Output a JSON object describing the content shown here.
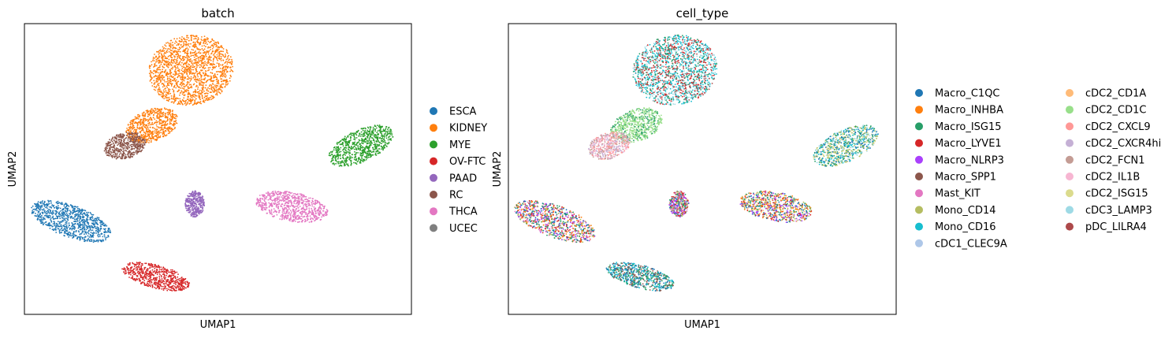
{
  "chart_data": [
    {
      "type": "scatter",
      "title": "batch",
      "xlabel": "UMAP1",
      "ylabel": "UMAP2",
      "xticks": "none",
      "yticks": "none",
      "grid": false,
      "legend_position": "right",
      "legend": [
        {
          "label": "ESCA",
          "color": "#1f77b4"
        },
        {
          "label": "KIDNEY",
          "color": "#ff7f0e"
        },
        {
          "label": "MYE",
          "color": "#2ca02c"
        },
        {
          "label": "OV-FTC",
          "color": "#d62728"
        },
        {
          "label": "PAAD",
          "color": "#9467bd"
        },
        {
          "label": "RC",
          "color": "#8c564b"
        },
        {
          "label": "THCA",
          "color": "#e377c2"
        },
        {
          "label": "UCEC",
          "color": "#7f7f7f"
        }
      ],
      "clusters": [
        {
          "group": "KIDNEY",
          "cx": 0.43,
          "cy": 0.84,
          "rx": 0.11,
          "ry": 0.12,
          "angle": -10
        },
        {
          "group": "KIDNEY",
          "cx": 0.33,
          "cy": 0.65,
          "rx": 0.07,
          "ry": 0.055,
          "angle": -20
        },
        {
          "group": "RC",
          "cx": 0.26,
          "cy": 0.58,
          "rx": 0.055,
          "ry": 0.045,
          "angle": -15
        },
        {
          "group": "MYE",
          "cx": 0.87,
          "cy": 0.58,
          "rx": 0.09,
          "ry": 0.055,
          "angle": -25
        },
        {
          "group": "PAAD",
          "cx": 0.44,
          "cy": 0.38,
          "rx": 0.025,
          "ry": 0.045,
          "angle": 0
        },
        {
          "group": "THCA",
          "cx": 0.69,
          "cy": 0.37,
          "rx": 0.095,
          "ry": 0.05,
          "angle": 10
        },
        {
          "group": "ESCA",
          "cx": 0.12,
          "cy": 0.32,
          "rx": 0.11,
          "ry": 0.055,
          "angle": 20
        },
        {
          "group": "OV-FTC",
          "cx": 0.34,
          "cy": 0.13,
          "rx": 0.09,
          "ry": 0.04,
          "angle": 15
        }
      ]
    },
    {
      "type": "scatter",
      "title": "cell_type",
      "xlabel": "UMAP1",
      "ylabel": "UMAP2",
      "xticks": "none",
      "yticks": "none",
      "grid": false,
      "legend_position": "right",
      "legend_columns": 2,
      "legend": [
        {
          "label": "Macro_C1QC",
          "color": "#1f77b4"
        },
        {
          "label": "Macro_INHBA",
          "color": "#ff7f0e"
        },
        {
          "label": "Macro_ISG15",
          "color": "#279e68"
        },
        {
          "label": "Macro_LYVE1",
          "color": "#d62728"
        },
        {
          "label": "Macro_NLRP3",
          "color": "#aa40fc"
        },
        {
          "label": "Macro_SPP1",
          "color": "#8c564b"
        },
        {
          "label": "Mast_KIT",
          "color": "#e377c2"
        },
        {
          "label": "Mono_CD14",
          "color": "#b5bd61"
        },
        {
          "label": "Mono_CD16",
          "color": "#17becf"
        },
        {
          "label": "cDC1_CLEC9A",
          "color": "#aec7e8"
        },
        {
          "label": "cDC2_CD1A",
          "color": "#ffbb78"
        },
        {
          "label": "cDC2_CD1C",
          "color": "#98df8a"
        },
        {
          "label": "cDC2_CXCL9",
          "color": "#ff9896"
        },
        {
          "label": "cDC2_CXCR4hi",
          "color": "#c5b0d5"
        },
        {
          "label": "cDC2_FCN1",
          "color": "#c49c94"
        },
        {
          "label": "cDC2_IL1B",
          "color": "#f7b6d2"
        },
        {
          "label": "cDC2_ISG15",
          "color": "#dbdb8d"
        },
        {
          "label": "cDC3_LAMP3",
          "color": "#9edae5"
        },
        {
          "label": "pDC_LILRA4",
          "color": "#ad494a"
        }
      ],
      "clusters": [
        {
          "cx": 0.43,
          "cy": 0.84,
          "rx": 0.11,
          "ry": 0.12,
          "angle": -10,
          "mix": [
            "Mono_CD16",
            "cDC3_LAMP3",
            "Macro_ISG15",
            "Macro_LYVE1",
            "pDC_LILRA4",
            "Mark_default"
          ]
        },
        {
          "cx": 0.33,
          "cy": 0.65,
          "rx": 0.07,
          "ry": 0.055,
          "angle": -20,
          "mix": [
            "cDC2_CD1C",
            "cDC2_CD1C",
            "cDC2_CD1C",
            "Macro_ISG15"
          ]
        },
        {
          "cx": 0.26,
          "cy": 0.58,
          "rx": 0.055,
          "ry": 0.045,
          "angle": -15,
          "mix": [
            "cDC2_IL1B",
            "cDC2_FCN1",
            "cDC2_CXCR4hi",
            "cDC2_CXCL9"
          ]
        },
        {
          "cx": 0.87,
          "cy": 0.58,
          "rx": 0.09,
          "ry": 0.055,
          "angle": -25,
          "mix": [
            "Macro_C1QC",
            "Mono_CD16",
            "cDC2_ISG15",
            "cDC3_LAMP3",
            "Mono_CD14",
            "Macro_ISG15"
          ]
        },
        {
          "cx": 0.44,
          "cy": 0.38,
          "rx": 0.025,
          "ry": 0.045,
          "angle": 0,
          "mix": [
            "Macro_C1QC",
            "Mono_CD14",
            "Macro_ISG15",
            "Macro_LYVE1",
            "Macro_NLRP3",
            "Mast_KIT"
          ]
        },
        {
          "cx": 0.69,
          "cy": 0.37,
          "rx": 0.095,
          "ry": 0.05,
          "angle": 10,
          "mix": [
            "Macro_INHBA",
            "Macro_C1QC",
            "Mono_CD14",
            "Macro_NLRP3",
            "Macro_ISG15",
            "Macro_LYVE1",
            "cDC2_CD1A"
          ]
        },
        {
          "cx": 0.12,
          "cy": 0.32,
          "rx": 0.11,
          "ry": 0.055,
          "angle": 20,
          "mix": [
            "Macro_C1QC",
            "Macro_INHBA",
            "Macro_ISG15",
            "Macro_LYVE1",
            "Macro_NLRP3",
            "Mast_KIT",
            "Mono_CD14"
          ]
        },
        {
          "cx": 0.34,
          "cy": 0.13,
          "rx": 0.09,
          "ry": 0.04,
          "angle": 15,
          "mix": [
            "Macro_C1QC",
            "Macro_SPP1",
            "Mono_CD16",
            "Macro_ISG15"
          ]
        }
      ]
    }
  ]
}
